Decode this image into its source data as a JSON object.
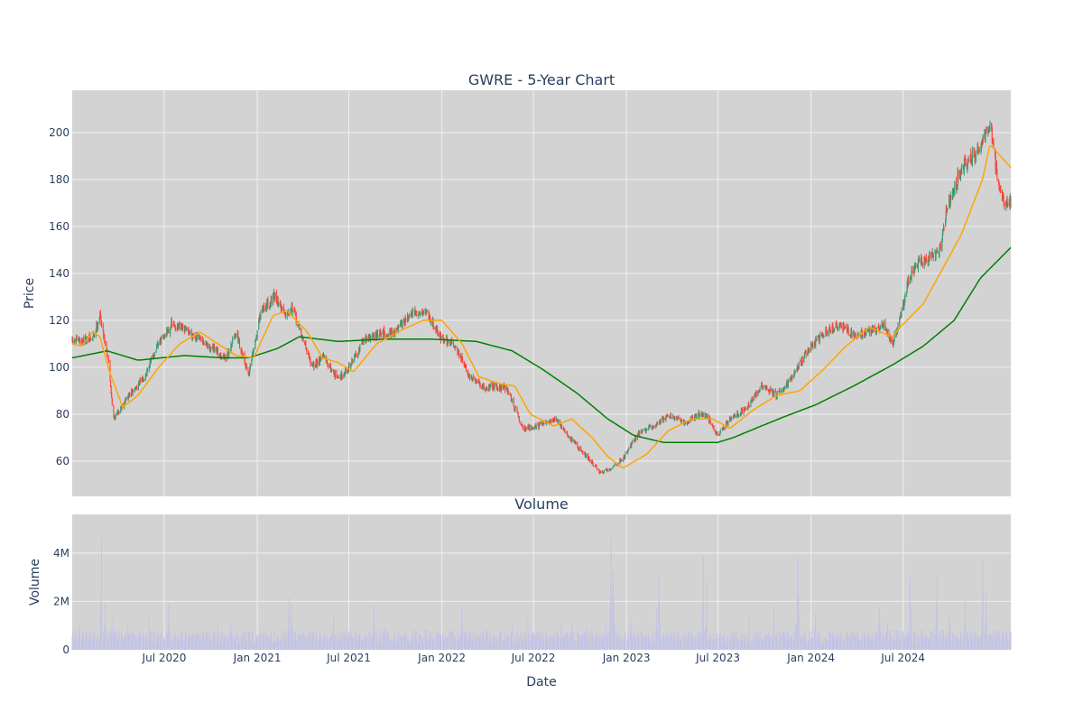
{
  "chart_data": [
    {
      "type": "candlestick",
      "title": "GWRE - 5-Year Chart",
      "ylabel": "Price",
      "ylim": [
        45,
        218
      ],
      "y_ticks": [
        60,
        80,
        100,
        120,
        140,
        160,
        180,
        200
      ],
      "grid": true,
      "legend": "none",
      "colors": {
        "plot_bg": "#d3d3d3",
        "grid": "#f0f0f0",
        "up": "#3d9970",
        "down": "#ff4136",
        "ma_short": "#ffa500",
        "ma_long": "#008000"
      },
      "price_anchors": {
        "x": [
          "2020-01-01",
          "2020-02-10",
          "2020-02-25",
          "2020-03-12",
          "2020-03-23",
          "2020-04-15",
          "2020-05-20",
          "2020-06-20",
          "2020-07-15",
          "2020-08-20",
          "2020-10-01",
          "2020-11-01",
          "2020-11-20",
          "2020-12-15",
          "2021-01-10",
          "2021-02-05",
          "2021-02-25",
          "2021-03-10",
          "2021-04-20",
          "2021-05-10",
          "2021-06-10",
          "2021-07-01",
          "2021-08-01",
          "2021-09-01",
          "2021-10-01",
          "2021-11-05",
          "2021-12-01",
          "2022-01-01",
          "2022-01-25",
          "2022-02-25",
          "2022-03-25",
          "2022-04-15",
          "2022-05-10",
          "2022-06-10",
          "2022-07-10",
          "2022-08-15",
          "2022-09-10",
          "2022-10-15",
          "2022-11-10",
          "2022-12-01",
          "2022-12-25",
          "2023-01-25",
          "2023-02-25",
          "2023-03-25",
          "2023-04-25",
          "2023-05-25",
          "2023-06-10",
          "2023-06-30",
          "2023-07-25",
          "2023-08-25",
          "2023-09-25",
          "2023-10-25",
          "2023-11-25",
          "2023-12-25",
          "2024-01-25",
          "2024-02-25",
          "2024-03-25",
          "2024-04-25",
          "2024-05-25",
          "2024-06-10",
          "2024-06-25",
          "2024-07-10",
          "2024-07-31",
          "2024-08-25",
          "2024-09-10",
          "2024-09-25",
          "2024-10-25",
          "2024-11-20",
          "2024-12-05",
          "2024-12-20",
          "2025-01-10",
          "2025-01-30"
        ],
        "close": [
          111,
          112,
          122,
          104,
          78,
          86,
          95,
          110,
          118,
          115,
          108,
          104,
          115,
          97,
          125,
          130,
          123,
          126,
          100,
          105,
          95,
          100,
          112,
          114,
          115,
          123,
          124,
          112,
          110,
          96,
          91,
          92,
          91,
          74,
          75,
          78,
          70,
          62,
          55,
          57,
          61,
          72,
          75,
          80,
          76,
          80,
          79,
          71,
          78,
          82,
          92,
          88,
          96,
          107,
          114,
          118,
          114,
          115,
          118,
          110,
          121,
          136,
          145,
          147,
          148,
          168,
          185,
          190,
          196,
          203,
          172,
          170
        ]
      },
      "ma_short_anchors": {
        "x": [
          "2020-01-01",
          "2020-01-20",
          "2020-02-10",
          "2020-02-25",
          "2020-03-15",
          "2020-04-10",
          "2020-05-10",
          "2020-06-20",
          "2020-08-01",
          "2020-09-10",
          "2020-10-15",
          "2020-11-20",
          "2020-12-25",
          "2021-02-01",
          "2021-03-01",
          "2021-04-10",
          "2021-05-10",
          "2021-06-10",
          "2021-07-10",
          "2021-08-25",
          "2021-10-15",
          "2021-11-25",
          "2022-01-01",
          "2022-02-10",
          "2022-03-15",
          "2022-04-25",
          "2022-05-25",
          "2022-06-25",
          "2022-08-10",
          "2022-09-15",
          "2022-10-25",
          "2022-11-25",
          "2022-12-25",
          "2023-02-10",
          "2023-03-25",
          "2023-05-10",
          "2023-06-20",
          "2023-07-25",
          "2023-09-10",
          "2023-10-25",
          "2023-12-10",
          "2024-01-25",
          "2024-03-10",
          "2024-04-25",
          "2024-06-10",
          "2024-06-25",
          "2024-08-10",
          "2024-09-25",
          "2024-10-25",
          "2024-12-05",
          "2024-12-20",
          "2025-01-30"
        ],
        "y": [
          110,
          109,
          115,
          113,
          98,
          83,
          88,
          100,
          110,
          115,
          110,
          105,
          104,
          122,
          124,
          115,
          104,
          102,
          98,
          110,
          116,
          120,
          120,
          110,
          96,
          93,
          92,
          80,
          75,
          78,
          70,
          62,
          57,
          63,
          73,
          78,
          78,
          74,
          82,
          88,
          90,
          99,
          109,
          117,
          113,
          117,
          127,
          145,
          157,
          180,
          195,
          185
        ]
      },
      "ma_long_anchors": {
        "x": [
          "2020-01-01",
          "2020-03-10",
          "2020-05-10",
          "2020-08-10",
          "2020-10-25",
          "2020-12-15",
          "2021-02-10",
          "2021-03-25",
          "2021-06-10",
          "2021-09-10",
          "2021-12-10",
          "2022-03-10",
          "2022-05-20",
          "2022-07-20",
          "2022-09-25",
          "2022-11-25",
          "2023-01-15",
          "2023-03-15",
          "2023-06-30",
          "2023-07-31",
          "2023-09-25",
          "2023-11-10",
          "2024-01-10",
          "2024-03-25",
          "2024-06-10",
          "2024-08-10",
          "2024-10-10",
          "2024-12-01",
          "2025-01-30"
        ],
        "y": [
          104,
          107,
          103,
          105,
          104,
          104,
          108,
          113,
          111,
          112,
          112,
          111,
          107,
          99,
          89,
          78,
          71,
          68,
          68,
          70,
          75,
          79,
          84,
          92,
          101,
          109,
          120,
          138,
          151
        ]
      }
    },
    {
      "type": "bar",
      "title": "Volume",
      "xlabel": "Date",
      "ylabel": "Volume",
      "ylim": [
        0,
        5600000
      ],
      "y_ticks": [
        0,
        2000000,
        4000000
      ],
      "y_tick_labels": [
        "0",
        "2M",
        "4M"
      ],
      "x_range": [
        "2020-01-01",
        "2025-01-30"
      ],
      "x_ticks": [
        "2020-07-01",
        "2021-01-01",
        "2021-07-01",
        "2022-01-01",
        "2022-07-01",
        "2023-01-01",
        "2023-07-01",
        "2024-01-01",
        "2024-07-01"
      ],
      "x_tick_labels": [
        "Jul 2020",
        "Jan 2021",
        "Jul 2021",
        "Jan 2022",
        "Jul 2022",
        "Jan 2023",
        "Jul 2023",
        "Jan 2024",
        "Jul 2024"
      ],
      "colors": {
        "bar": "#c3c3e6",
        "plot_bg": "#d3d3d3",
        "grid": "#f0f0f0"
      },
      "baseline_volume": 600000,
      "volume_spikes": {
        "x": [
          "2020-01-15",
          "2020-02-28",
          "2020-03-06",
          "2020-03-20",
          "2020-04-20",
          "2020-06-01",
          "2020-07-10",
          "2020-08-15",
          "2020-09-05",
          "2020-10-15",
          "2020-11-10",
          "2020-12-20",
          "2021-01-15",
          "2021-03-05",
          "2021-03-10",
          "2021-04-15",
          "2021-06-01",
          "2021-08-20",
          "2021-09-10",
          "2021-12-01",
          "2022-02-10",
          "2022-03-20",
          "2022-05-20",
          "2022-06-20",
          "2022-08-25",
          "2022-09-15",
          "2022-10-15",
          "2022-11-20",
          "2022-12-02",
          "2022-12-06",
          "2023-01-10",
          "2023-03-02",
          "2023-03-06",
          "2023-05-10",
          "2023-06-02",
          "2023-06-09",
          "2023-09-01",
          "2023-10-20",
          "2023-12-01",
          "2023-12-06",
          "2024-01-10",
          "2024-03-01",
          "2024-05-15",
          "2024-05-31",
          "2024-06-06",
          "2024-07-15",
          "2024-09-01",
          "2024-09-06",
          "2024-10-01",
          "2024-11-01",
          "2024-12-06",
          "2024-12-12",
          "2025-01-05"
        ],
        "v": [
          1200000,
          4800000,
          2000000,
          1600000,
          1200000,
          1400000,
          2100000,
          800000,
          1900000,
          1300000,
          1200000,
          1400000,
          900000,
          2700000,
          2000000,
          900000,
          1500000,
          1900000,
          1200000,
          1000000,
          2000000,
          1100000,
          1000000,
          1500000,
          1100000,
          1400000,
          1800000,
          2100000,
          5400000,
          4100000,
          1400000,
          1900000,
          3800000,
          1000000,
          4200000,
          2900000,
          1400000,
          2300000,
          1200000,
          4200000,
          1700000,
          900000,
          2100000,
          1300000,
          1000000,
          3300000,
          1500000,
          3600000,
          1700000,
          2500000,
          4400000,
          2400000,
          1500000
        ]
      }
    }
  ]
}
